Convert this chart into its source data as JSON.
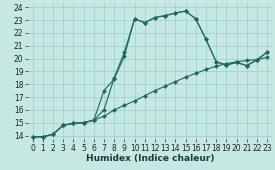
{
  "xlabel": "Humidex (Indice chaleur)",
  "bg_color": "#c5e8e2",
  "grid_color": "#9ecec7",
  "line_color": "#1a6b5a",
  "xlim_min": -0.5,
  "xlim_max": 23.5,
  "ylim_min": 13.7,
  "ylim_max": 24.3,
  "xticks": [
    0,
    1,
    2,
    3,
    4,
    5,
    6,
    7,
    8,
    9,
    10,
    11,
    12,
    13,
    14,
    15,
    16,
    17,
    18,
    19,
    20,
    21,
    22,
    23
  ],
  "yticks": [
    14,
    15,
    16,
    17,
    18,
    19,
    20,
    21,
    22,
    23,
    24
  ],
  "line1": {
    "x": [
      0,
      1,
      2,
      3,
      4,
      5,
      6,
      7,
      8,
      9,
      10,
      11,
      12,
      13,
      14,
      15,
      16,
      17,
      18,
      19,
      20,
      21,
      22,
      23
    ],
    "y": [
      13.9,
      13.9,
      14.1,
      14.8,
      14.95,
      15.0,
      15.2,
      15.5,
      16.0,
      16.35,
      16.7,
      17.1,
      17.5,
      17.85,
      18.2,
      18.55,
      18.85,
      19.15,
      19.4,
      19.6,
      19.75,
      19.85,
      19.92,
      20.1
    ],
    "markers": true
  },
  "line2": {
    "x": [
      0,
      1,
      2,
      3,
      4,
      5,
      6,
      7,
      8,
      9,
      10,
      11,
      12,
      13,
      14,
      15,
      16,
      17,
      18,
      19,
      20,
      21,
      22,
      23
    ],
    "y": [
      13.9,
      13.9,
      14.1,
      14.8,
      14.95,
      15.0,
      15.2,
      16.0,
      18.5,
      20.5,
      23.1,
      22.8,
      23.2,
      23.35,
      23.55,
      23.7,
      23.1,
      21.5,
      19.75,
      19.5,
      19.7,
      19.45,
      19.9,
      20.5
    ],
    "markers": true
  },
  "line3": {
    "x": [
      0,
      1,
      2,
      3,
      4,
      5,
      6,
      7,
      8,
      9,
      10,
      11,
      12,
      13,
      14,
      15,
      16,
      17,
      18,
      19,
      20,
      21,
      22,
      23
    ],
    "y": [
      13.9,
      13.9,
      14.1,
      14.8,
      14.95,
      15.0,
      15.2,
      17.5,
      18.4,
      20.2,
      23.1,
      22.8,
      23.2,
      23.35,
      23.55,
      23.7,
      23.1,
      21.5,
      19.75,
      19.5,
      19.7,
      19.45,
      19.9,
      20.5
    ],
    "markers": true
  },
  "tick_fontsize": 5.5,
  "xlabel_fontsize": 6.5,
  "marker_size": 2.2,
  "linewidth": 0.8
}
